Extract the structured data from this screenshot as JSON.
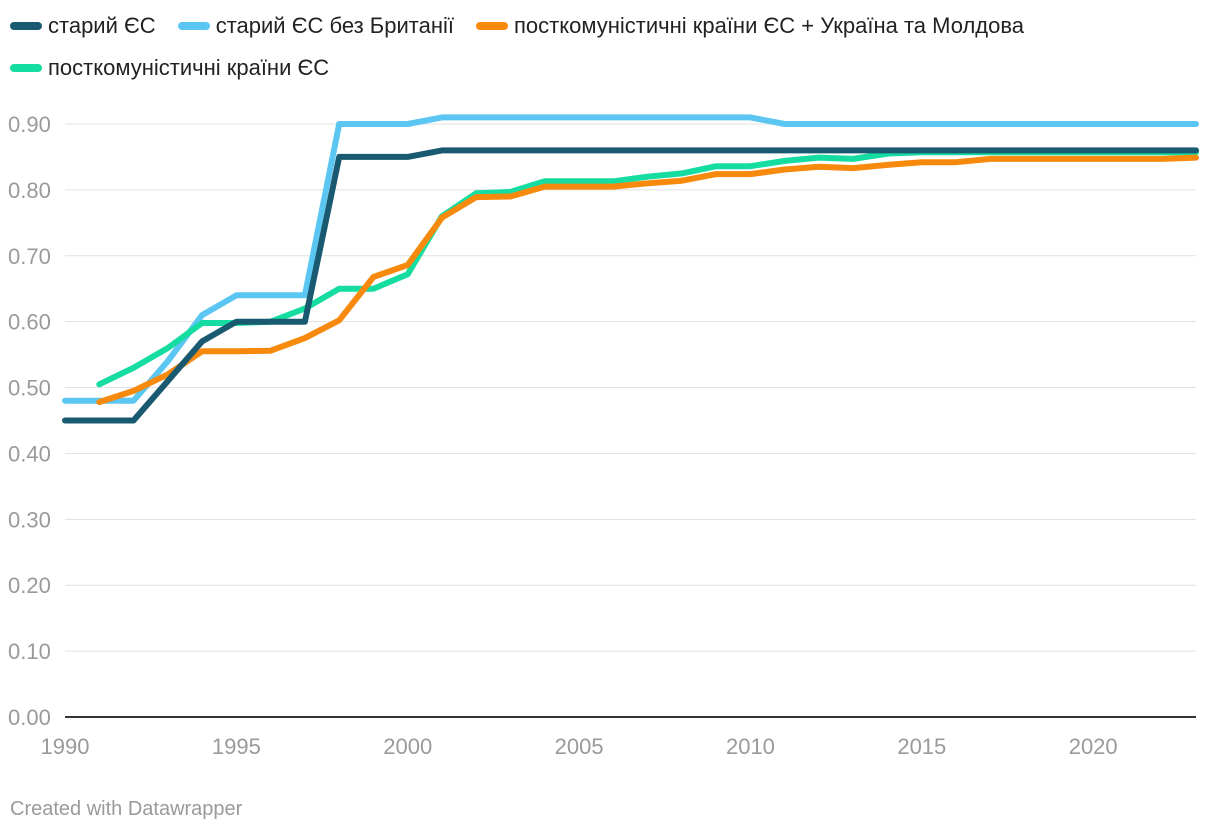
{
  "chart_data": {
    "type": "line",
    "title": "",
    "xlabel": "",
    "ylabel": "",
    "ylim": [
      0,
      0.9
    ],
    "xlim": [
      1990,
      2023
    ],
    "y_ticks": [
      "0.00",
      "0.10",
      "0.20",
      "0.30",
      "0.40",
      "0.50",
      "0.60",
      "0.70",
      "0.80",
      "0.90"
    ],
    "y_tick_values": [
      0,
      0.1,
      0.2,
      0.3,
      0.4,
      0.5,
      0.6,
      0.7,
      0.8,
      0.9
    ],
    "x_ticks": [
      "1990",
      "1995",
      "2000",
      "2005",
      "2010",
      "2015",
      "2020"
    ],
    "x_tick_values": [
      1990,
      1995,
      2000,
      2005,
      2010,
      2015,
      2020
    ],
    "grid": true,
    "legend_position": "top-left",
    "series": [
      {
        "name": "старий ЄС",
        "color": "#1a5a70",
        "x": [
          1990,
          1991,
          1992,
          1993,
          1994,
          1995,
          1996,
          1997,
          1998,
          1999,
          2000,
          2001,
          2002,
          2003,
          2004,
          2005,
          2006,
          2007,
          2008,
          2009,
          2010,
          2011,
          2012,
          2013,
          2014,
          2015,
          2016,
          2017,
          2018,
          2019,
          2020,
          2021,
          2022,
          2023
        ],
        "values": [
          0.45,
          0.45,
          0.45,
          0.51,
          0.57,
          0.6,
          0.6,
          0.6,
          0.85,
          0.85,
          0.85,
          0.86,
          0.86,
          0.86,
          0.86,
          0.86,
          0.86,
          0.86,
          0.86,
          0.86,
          0.86,
          0.86,
          0.86,
          0.86,
          0.86,
          0.86,
          0.86,
          0.86,
          0.86,
          0.86,
          0.86,
          0.86,
          0.86,
          0.86
        ]
      },
      {
        "name": "старий ЄС без Британії",
        "color": "#5bc6f2",
        "x": [
          1990,
          1991,
          1992,
          1993,
          1994,
          1995,
          1996,
          1997,
          1998,
          1999,
          2000,
          2001,
          2002,
          2003,
          2004,
          2005,
          2006,
          2007,
          2008,
          2009,
          2010,
          2011,
          2012,
          2013,
          2014,
          2015,
          2016,
          2017,
          2018,
          2019,
          2020,
          2021,
          2022,
          2023
        ],
        "values": [
          0.48,
          0.48,
          0.48,
          0.54,
          0.61,
          0.64,
          0.64,
          0.64,
          0.9,
          0.9,
          0.9,
          0.91,
          0.91,
          0.91,
          0.91,
          0.91,
          0.91,
          0.91,
          0.91,
          0.91,
          0.91,
          0.9,
          0.9,
          0.9,
          0.9,
          0.9,
          0.9,
          0.9,
          0.9,
          0.9,
          0.9,
          0.9,
          0.9,
          0.9
        ]
      },
      {
        "name": "посткомуністичні країни ЄС",
        "color": "#15dca0",
        "x": [
          1991,
          1992,
          1993,
          1994,
          1995,
          1996,
          1997,
          1998,
          1999,
          2000,
          2001,
          2002,
          2003,
          2004,
          2005,
          2006,
          2007,
          2008,
          2009,
          2010,
          2011,
          2012,
          2013,
          2014,
          2015,
          2016,
          2017,
          2018,
          2019,
          2020,
          2021,
          2022,
          2023
        ],
        "values": [
          0.505,
          0.53,
          0.56,
          0.598,
          0.598,
          0.6,
          0.62,
          0.65,
          0.65,
          0.672,
          0.76,
          0.795,
          0.797,
          0.813,
          0.813,
          0.813,
          0.82,
          0.825,
          0.836,
          0.836,
          0.844,
          0.849,
          0.847,
          0.855,
          0.857,
          0.857,
          0.857,
          0.857,
          0.857,
          0.857,
          0.857,
          0.857,
          0.857
        ]
      },
      {
        "name": "посткомуністичні країни ЄС + Україна та Молдова",
        "color": "#f78a0c",
        "x": [
          1991,
          1992,
          1993,
          1994,
          1995,
          1996,
          1997,
          1998,
          1999,
          2000,
          2001,
          2002,
          2003,
          2004,
          2005,
          2006,
          2007,
          2008,
          2009,
          2010,
          2011,
          2012,
          2013,
          2014,
          2015,
          2016,
          2017,
          2018,
          2019,
          2020,
          2021,
          2022,
          2023
        ],
        "values": [
          0.478,
          0.495,
          0.52,
          0.555,
          0.555,
          0.556,
          0.575,
          0.602,
          0.668,
          0.686,
          0.758,
          0.789,
          0.79,
          0.805,
          0.805,
          0.805,
          0.81,
          0.814,
          0.824,
          0.824,
          0.831,
          0.835,
          0.833,
          0.838,
          0.842,
          0.842,
          0.847,
          0.847,
          0.847,
          0.847,
          0.847,
          0.847,
          0.849
        ]
      }
    ]
  },
  "legend_order": [
    0,
    1,
    3,
    2
  ],
  "credit": "Created with Datawrapper"
}
